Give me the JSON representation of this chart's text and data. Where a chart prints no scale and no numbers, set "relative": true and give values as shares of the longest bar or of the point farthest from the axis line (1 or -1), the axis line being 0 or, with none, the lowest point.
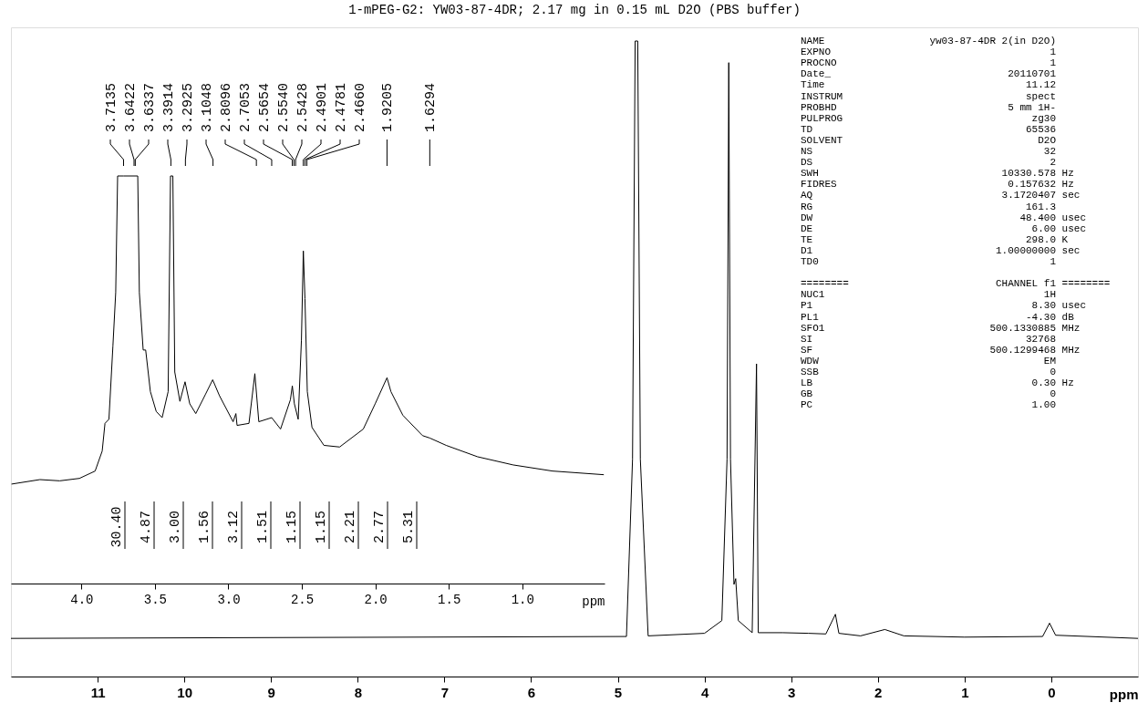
{
  "chart_data": [
    {
      "type": "line",
      "title": "1-mPEG-G2: YW03-87-4DR;  2.17 mg in 0.15 mL D2O (PBS buffer)",
      "xlabel": "ppm",
      "relative": true,
      "xlim": [
        12,
        -1
      ],
      "xticks": [
        0,
        1,
        2,
        3,
        4,
        5,
        6,
        7,
        8,
        9,
        10,
        11
      ],
      "grid": false,
      "x": [
        12,
        4.9,
        4.83,
        4.8,
        4.77,
        4.74,
        4.65,
        4.0,
        3.8,
        3.74,
        3.72,
        3.7,
        3.66,
        3.64,
        3.61,
        3.45,
        3.4,
        3.38,
        3.1,
        2.8,
        2.6,
        2.49,
        2.45,
        2.2,
        1.92,
        1.7,
        1.0,
        0.1,
        0.02,
        -0.05,
        -1
      ],
      "series": [
        {
          "color": "#000000",
          "values": [
            0.06,
            0.063,
            0.342,
            1.0,
            1.0,
            0.342,
            0.064,
            0.068,
            0.088,
            0.342,
            0.966,
            0.342,
            0.145,
            0.154,
            0.088,
            0.069,
            0.492,
            0.069,
            0.069,
            0.068,
            0.067,
            0.098,
            0.068,
            0.064,
            0.074,
            0.064,
            0.062,
            0.063,
            0.084,
            0.065,
            0.06
          ]
        }
      ],
      "annotations": [
        "NAME yw03-87-4DR 2(in D2O)",
        "EXPNO 1",
        "PROCNO 1",
        "Date_ 20110701",
        "Time 11.12",
        "INSTRUM spect",
        "PROBHD 5 mm 1H-",
        "PULPROG zg30",
        "TD 65536",
        "SOLVENT D2O",
        "NS 32",
        "DS 2",
        "SWH 10330.578 Hz",
        "FIDRES 0.157632 Hz",
        "AQ 3.1720407 sec",
        "RG 161.3",
        "DW 48.400 usec",
        "DE 6.00 usec",
        "TE 298.0 K",
        "D1 1.00000000 sec",
        "TD0 1",
        "======== CHANNEL f1 ========",
        "NUC1 1H",
        "P1 8.30 usec",
        "PL1 -4.30 dB",
        "SFO1 500.1330885 MHz",
        "SI 32768",
        "SF 500.1299468 MHz",
        "WDW EM",
        "SSB 0",
        "LB 0.30 Hz",
        "GB 0",
        "PC 1.00"
      ]
    },
    {
      "type": "line",
      "xlabel": "ppm",
      "relative": true,
      "xlim": [
        4.48,
        0.44
      ],
      "grid": false,
      "xticks": [
        {
          "value": 4,
          "label": "4.0"
        },
        3.5,
        {
          "value": 3,
          "label": "3.0"
        },
        2.5,
        {
          "value": 2,
          "label": "2.0"
        },
        1.5,
        {
          "value": 1,
          "label": "1.0"
        }
      ],
      "x": [
        4.476,
        4.283,
        4.148,
        4.014,
        3.907,
        3.859,
        3.84,
        3.813,
        3.786,
        3.767,
        3.754,
        3.7135,
        3.6422,
        3.617,
        3.606,
        3.58,
        3.563,
        3.531,
        3.491,
        3.451,
        3.41,
        3.394,
        3.378,
        3.365,
        3.33,
        3.295,
        3.263,
        3.222,
        3.155,
        3.107,
        3.061,
        2.968,
        2.949,
        2.941,
        2.86,
        2.82,
        2.793,
        2.7053,
        2.645,
        2.578,
        2.565,
        2.551,
        2.525,
        2.503,
        2.49,
        2.479,
        2.463,
        2.431,
        2.35,
        2.243,
        2.082,
        2.001,
        1.9205,
        1.894,
        1.813,
        1.679,
        1.6294,
        1.518,
        1.304,
        1.062,
        0.794,
        0.445
      ],
      "series": [
        {
          "color": "#000000",
          "values": [
            0.244,
            0.255,
            0.252,
            0.258,
            0.276,
            0.325,
            0.393,
            0.403,
            0.583,
            0.714,
            1.0,
            1.0,
            1.0,
            1.0,
            0.714,
            0.573,
            0.573,
            0.471,
            0.422,
            0.407,
            0.471,
            1.0,
            1.0,
            0.519,
            0.447,
            0.495,
            0.441,
            0.417,
            0.465,
            0.5,
            0.461,
            0.397,
            0.417,
            0.388,
            0.393,
            0.515,
            0.397,
            0.407,
            0.379,
            0.451,
            0.485,
            0.441,
            0.403,
            0.597,
            0.816,
            0.699,
            0.471,
            0.383,
            0.339,
            0.335,
            0.379,
            0.441,
            0.505,
            0.471,
            0.413,
            0.363,
            0.357,
            0.339,
            0.311,
            0.291,
            0.276,
            0.267
          ]
        }
      ],
      "annotations": [
        {
          "text": "3.7135",
          "x": 3.7135
        },
        {
          "text": "3.6422",
          "x": 3.6422
        },
        {
          "text": "3.6337",
          "x": 3.6337
        },
        {
          "text": "3.3914",
          "x": 3.3914
        },
        {
          "text": "3.2925",
          "x": 3.2925
        },
        {
          "text": "3.1048",
          "x": 3.1048
        },
        {
          "text": "2.8096",
          "x": 2.8096
        },
        {
          "text": "2.7053",
          "x": 2.7053
        },
        {
          "text": "2.5654",
          "x": 2.5654
        },
        {
          "text": "2.5540",
          "x": 2.554
        },
        {
          "text": "2.5428",
          "x": 2.5428
        },
        {
          "text": "2.4901",
          "x": 2.4901
        },
        {
          "text": "2.4781",
          "x": 2.4781
        },
        {
          "text": "2.4660",
          "x": 2.466
        },
        {
          "text": "1.9205",
          "x": 1.9205
        },
        {
          "text": "1.6294",
          "x": 1.6294
        },
        "30.40",
        "4.87",
        "3.00",
        "1.56",
        "3.12",
        "1.51",
        "1.15",
        "1.15",
        "2.21",
        "2.77",
        "5.31"
      ]
    }
  ]
}
